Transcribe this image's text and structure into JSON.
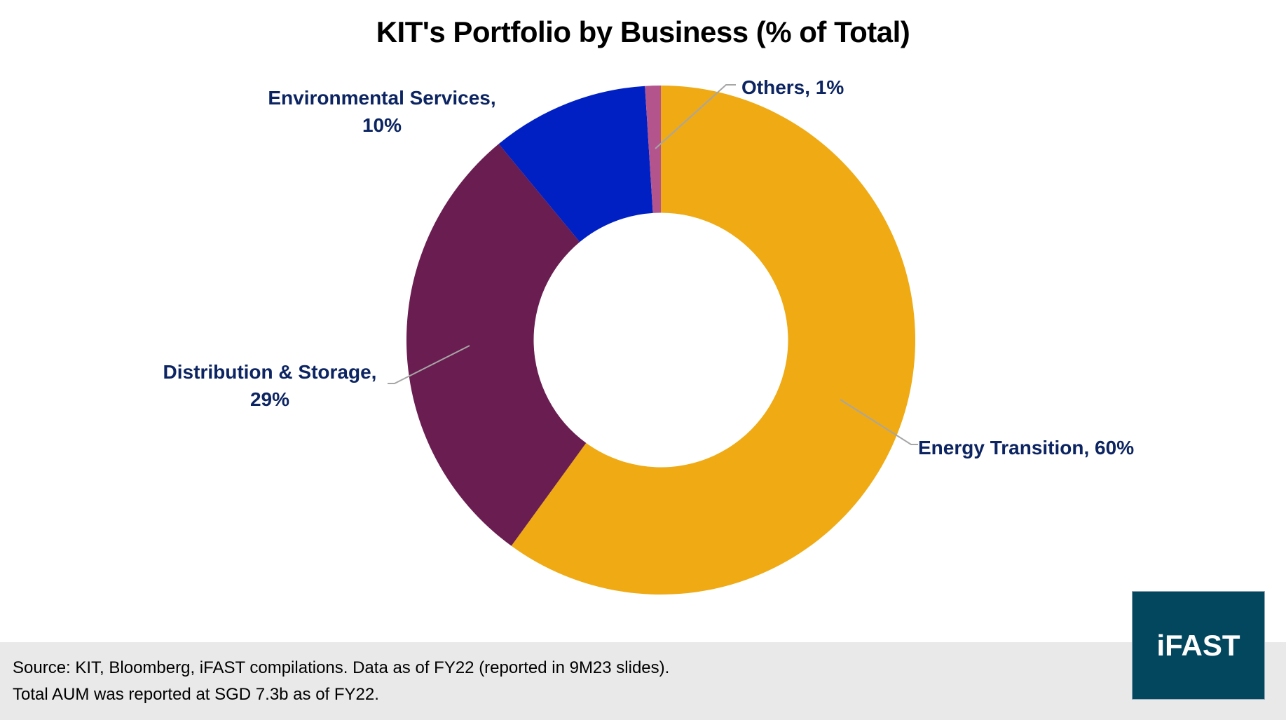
{
  "chart_data": {
    "type": "pie",
    "subtype": "donut",
    "title": "KIT's Portfolio by Business (% of Total)",
    "categories": [
      "Energy Transition",
      "Distribution & Storage",
      "Environmental Services",
      "Others"
    ],
    "values": [
      60,
      29,
      10,
      1
    ],
    "unit": "%",
    "colors": [
      "#EFAA14",
      "#6A1D50",
      "#0020C4",
      "#B4548D"
    ],
    "labels": [
      {
        "text": "Energy Transition, 60%",
        "line1": "Energy Transition, 60%",
        "line2": ""
      },
      {
        "text": "Distribution & Storage, 29%",
        "line1": "Distribution & Storage,",
        "line2": "29%"
      },
      {
        "text": "Environmental Services, 10%",
        "line1": "Environmental Services,",
        "line2": "10%"
      },
      {
        "text": "Others, 1%",
        "line1": "Others, 1%",
        "line2": ""
      }
    ],
    "start_angle_deg": 0,
    "direction": "clockwise",
    "hole_ratio": 0.5,
    "legend": "none (data labels with leader lines)"
  },
  "footer": {
    "line1": "Source: KIT, Bloomberg, iFAST compilations. Data as of FY22 (reported in 9M23 slides).",
    "line2": "Total AUM was reported at SGD 7.3b as of FY22."
  },
  "logo": {
    "text": "iFAST",
    "bg_color": "#03475F"
  },
  "colors": {
    "label_text": "#0C2461",
    "leader_line": "#A6A6A6",
    "footer_bg": "#E9E9E9"
  }
}
